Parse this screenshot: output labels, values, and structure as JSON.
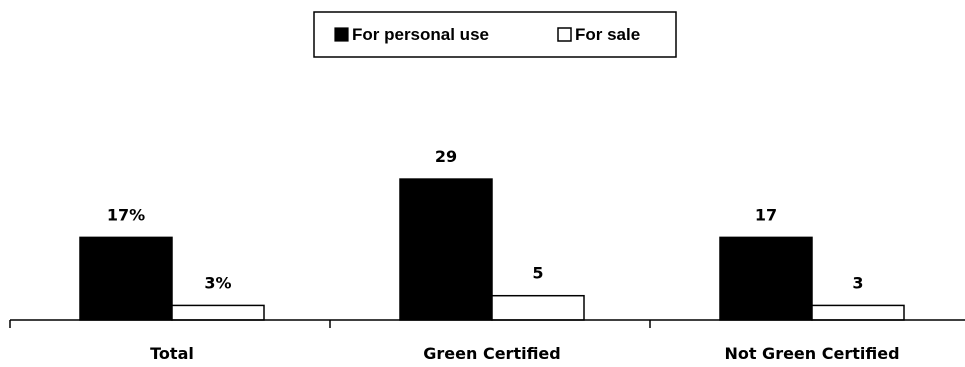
{
  "chart_data": {
    "type": "bar",
    "categories": [
      "Total",
      "Green Certified",
      "Not Green Certified"
    ],
    "series": [
      {
        "name": "For personal use",
        "values": [
          17,
          29,
          17
        ],
        "labels": [
          "17%",
          "29",
          "17"
        ],
        "color": "#000000"
      },
      {
        "name": "For sale",
        "values": [
          3,
          5,
          3
        ],
        "labels": [
          "3%",
          "5",
          "3"
        ],
        "color": "#ffffff"
      }
    ],
    "title": "",
    "xlabel": "",
    "ylabel": "",
    "ylim": [
      0,
      35
    ],
    "grid": false,
    "legend_position": "top-center"
  }
}
